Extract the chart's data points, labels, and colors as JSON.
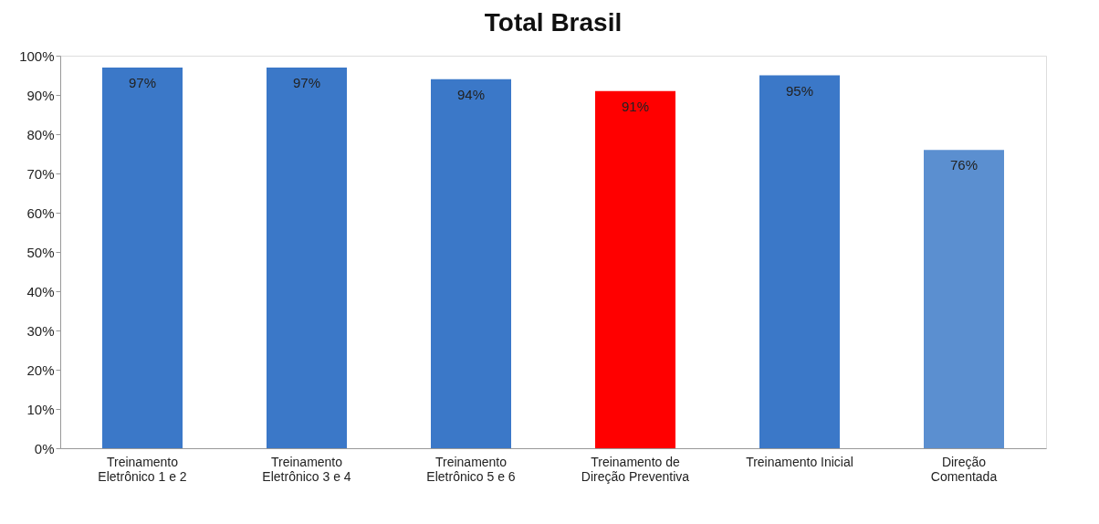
{
  "chart_data": {
    "type": "bar",
    "title": "Total Brasil",
    "categories": [
      "Treinamento\nEletrônico 1 e 2",
      "Treinamento\nEletrônico 3 e 4",
      "Treinamento\nEletrônico 5 e 6",
      "Treinamento de\nDireção Preventiva",
      "Treinamento Inicial",
      "Direção\nComentada"
    ],
    "values": [
      97,
      97,
      94,
      91,
      95,
      76
    ],
    "colors": [
      "#3b78c8",
      "#3b78c8",
      "#3b78c8",
      "#ff0000",
      "#3b78c8",
      "#5b8fd0"
    ],
    "value_labels": [
      "97%",
      "97%",
      "94%",
      "91%",
      "95%",
      "76%"
    ],
    "ylim": [
      0,
      100
    ],
    "yticks": [
      {
        "value": 0,
        "label": "0%"
      },
      {
        "value": 10,
        "label": "10%"
      },
      {
        "value": 20,
        "label": "20%"
      },
      {
        "value": 30,
        "label": "30%"
      },
      {
        "value": 40,
        "label": "40%"
      },
      {
        "value": 50,
        "label": "50%"
      },
      {
        "value": 60,
        "label": "60%"
      },
      {
        "value": 70,
        "label": "70%"
      },
      {
        "value": 80,
        "label": "80%"
      },
      {
        "value": 90,
        "label": "90%"
      },
      {
        "value": 100,
        "label": "100%"
      }
    ],
    "grid": false
  }
}
